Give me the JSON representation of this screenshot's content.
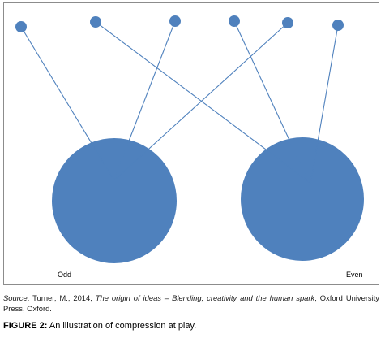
{
  "diagram": {
    "colors": {
      "node": "#4f81bd",
      "edge": "#4f81bd"
    },
    "left_label": "Odd",
    "right_label": "Even",
    "connections": [
      {
        "from": "dot-1",
        "to": "odd"
      },
      {
        "from": "dot-2",
        "to": "even"
      },
      {
        "from": "dot-3",
        "to": "odd"
      },
      {
        "from": "dot-4",
        "to": "even"
      },
      {
        "from": "dot-5",
        "to": "odd"
      },
      {
        "from": "dot-6",
        "to": "even"
      }
    ]
  },
  "source": {
    "prefix": "Source",
    "author": ": Turner, M., 2014, ",
    "title": "The origin of ideas – Blending, creativity and the human spark",
    "publisher": ", Oxford University Press, Oxford."
  },
  "caption": {
    "label": "FIGURE 2:",
    "text": " An illustration of compression at play."
  }
}
